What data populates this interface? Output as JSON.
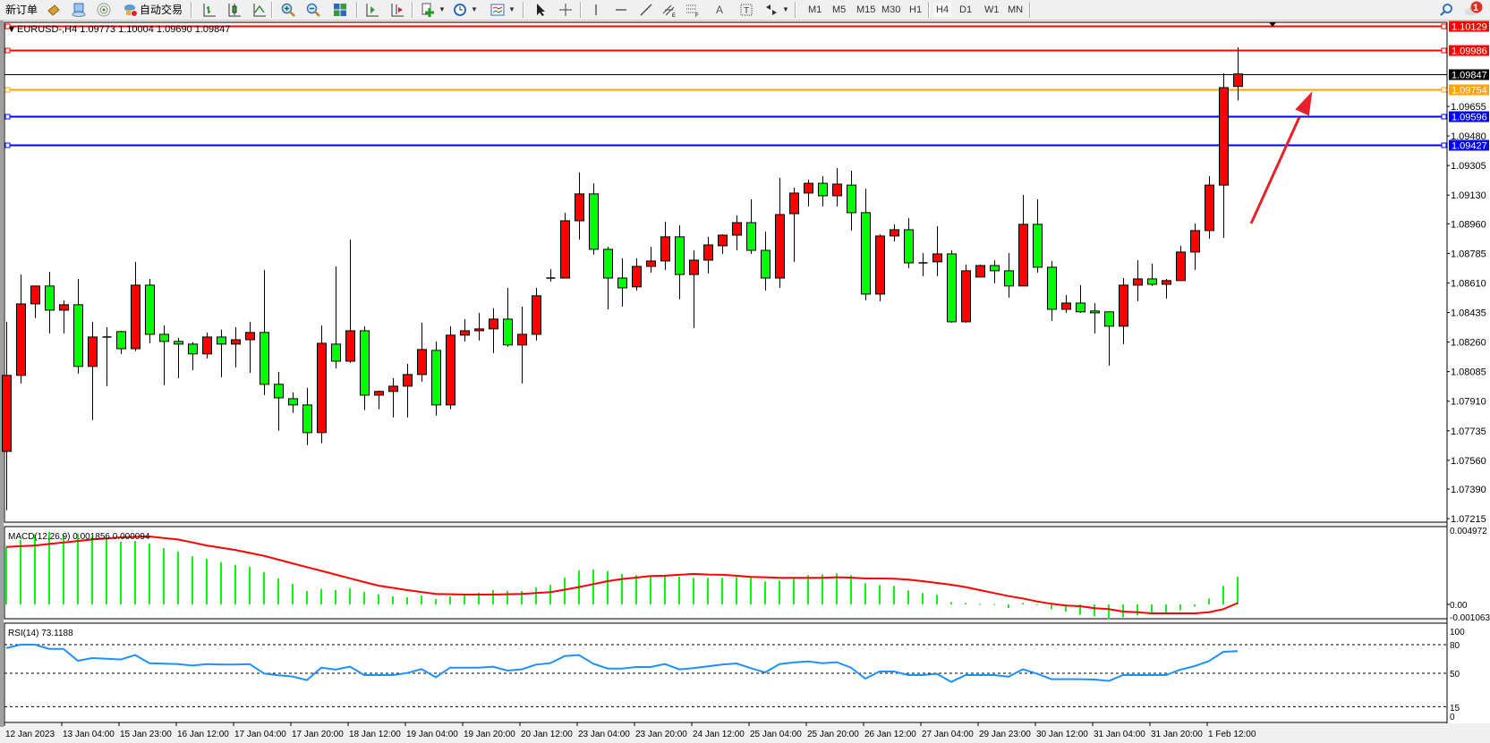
{
  "toolbar": {
    "new_order": "新订单",
    "auto_trading": "自动交易",
    "timeframes": [
      "M1",
      "M5",
      "M15",
      "M30",
      "H1",
      "H4",
      "D1",
      "W1",
      "MN"
    ],
    "active_timeframe": "H4",
    "notification_count": "1"
  },
  "chart": {
    "header": "EURUSD-,H4  1.09773 1.10004 1.09690 1.09847",
    "bull_color": "#ff0000",
    "bear_color": "#00ff00",
    "price_ticks": [
      "1.09655",
      "1.09480",
      "1.09305",
      "1.09130",
      "1.08960",
      "1.08785",
      "1.08610",
      "1.08435",
      "1.08260",
      "1.08085",
      "1.07910",
      "1.07735",
      "1.07560",
      "1.07390",
      "1.07215"
    ],
    "hlines": [
      {
        "price": "1.10129",
        "color": "#ff0000"
      },
      {
        "price": "1.09986",
        "color": "#ff0000"
      },
      {
        "price": "1.09847",
        "color": "#000000"
      },
      {
        "price": "1.09754",
        "color": "#ffa500"
      },
      {
        "price": "1.09596",
        "color": "#0000ff"
      },
      {
        "price": "1.09427",
        "color": "#0000ff"
      }
    ],
    "arrow_color": "#e8202a",
    "time_labels": [
      "12 Jan 2023",
      "13 Jan 04:00",
      "15 Jan 23:00",
      "16 Jan 12:00",
      "17 Jan 04:00",
      "17 Jan 20:00",
      "18 Jan 12:00",
      "19 Jan 04:00",
      "19 Jan 20:00",
      "20 Jan 12:00",
      "23 Jan 04:00",
      "23 Jan 20:00",
      "24 Jan 12:00",
      "25 Jan 04:00",
      "25 Jan 20:00",
      "26 Jan 12:00",
      "27 Jan 04:00",
      "29 Jan 23:00",
      "30 Jan 12:00",
      "31 Jan 04:00",
      "31 Jan 20:00",
      "1 Feb 12:00"
    ]
  },
  "macd": {
    "label": "MACD(12,26,9) 0.001856 0.000094",
    "ticks": [
      "0.004972",
      "0.00",
      "-0.001063"
    ],
    "hist_color": "#00ff00",
    "signal_color": "#ff0000"
  },
  "rsi": {
    "label": "RSI(14) 73.1188",
    "ticks": [
      "100",
      "80",
      "50",
      "15",
      "0"
    ],
    "line_color": "#1e90ff"
  },
  "chart_data": {
    "type": "candlestick",
    "symbol": "EURUSD-",
    "timeframe": "H4",
    "ohlc": [
      [
        1.07613,
        1.0838,
        1.07264,
        1.08063
      ],
      [
        1.08063,
        1.0866,
        1.08015,
        1.08486
      ],
      [
        1.08486,
        1.08592,
        1.08402,
        1.08592
      ],
      [
        1.08592,
        1.08676,
        1.08311,
        1.08449
      ],
      [
        1.08449,
        1.08507,
        1.08311,
        1.08481
      ],
      [
        1.08481,
        1.08634,
        1.08073,
        1.08116
      ],
      [
        1.08116,
        1.0838,
        1.07798,
        1.0829
      ],
      [
        1.0829,
        1.08348,
        1.07999,
        1.0829
      ],
      [
        1.08322,
        1.08327,
        1.0819,
        1.08221
      ],
      [
        1.08221,
        1.08735,
        1.08206,
        1.08597
      ],
      [
        1.08597,
        1.08634,
        1.08253,
        1.08306
      ],
      [
        1.08306,
        1.08359,
        1.08005,
        1.08264
      ],
      [
        1.08264,
        1.08285,
        1.08047,
        1.08248
      ],
      [
        1.08248,
        1.08259,
        1.08094,
        1.0819
      ],
      [
        1.0819,
        1.08317,
        1.08163,
        1.0829
      ],
      [
        1.0829,
        1.08333,
        1.08052,
        1.08248
      ],
      [
        1.08248,
        1.08348,
        1.0811,
        1.08274
      ],
      [
        1.08274,
        1.0838,
        1.08078,
        1.08317
      ],
      [
        1.08317,
        1.08687,
        1.07946,
        1.0801
      ],
      [
        1.0801,
        1.08084,
        1.07735,
        1.0793
      ],
      [
        1.07925,
        1.07962,
        1.07841,
        1.07888
      ],
      [
        1.07888,
        1.07989,
        1.0765,
        1.07724
      ],
      [
        1.07724,
        1.08359,
        1.07661,
        1.08253
      ],
      [
        1.08248,
        1.08708,
        1.08105,
        1.08147
      ],
      [
        1.08147,
        1.08867,
        1.08137,
        1.08327
      ],
      [
        1.08327,
        1.08354,
        1.07857,
        1.07946
      ],
      [
        1.07946,
        1.07973,
        1.07862,
        1.07968
      ],
      [
        1.07968,
        1.08047,
        1.07814,
        1.07999
      ],
      [
        1.07999,
        1.08131,
        1.07814,
        1.08068
      ],
      [
        1.08068,
        1.08375,
        1.08026,
        1.08216
      ],
      [
        1.08211,
        1.08264,
        1.07825,
        1.07888
      ],
      [
        1.07888,
        1.08354,
        1.07862,
        1.08301
      ],
      [
        1.08301,
        1.08396,
        1.08264,
        1.08327
      ],
      [
        1.08327,
        1.08433,
        1.08269,
        1.08338
      ],
      [
        1.08338,
        1.0846,
        1.08195,
        1.08396
      ],
      [
        1.08396,
        1.08581,
        1.08232,
        1.08243
      ],
      [
        1.08243,
        1.0847,
        1.08015,
        1.08306
      ],
      [
        1.08306,
        1.08581,
        1.08269,
        1.08534
      ],
      [
        1.08639,
        1.08692,
        1.08618,
        1.08639
      ],
      [
        1.08639,
        1.09026,
        1.08639,
        1.08978
      ],
      [
        1.08978,
        1.09264,
        1.08867,
        1.09137
      ],
      [
        1.09137,
        1.092,
        1.08777,
        1.08809
      ],
      [
        1.08809,
        1.08824,
        1.08454,
        1.08639
      ],
      [
        1.08639,
        1.08756,
        1.0847,
        1.08581
      ],
      [
        1.08587,
        1.08756,
        1.08565,
        1.08708
      ],
      [
        1.08708,
        1.08824,
        1.08671,
        1.0874
      ],
      [
        1.0874,
        1.08973,
        1.08687,
        1.08883
      ],
      [
        1.08883,
        1.08952,
        1.08513,
        1.0866
      ],
      [
        1.0866,
        1.08803,
        1.08343,
        1.08745
      ],
      [
        1.08745,
        1.08883,
        1.08666,
        1.08835
      ],
      [
        1.0883,
        1.08898,
        1.08782,
        1.08893
      ],
      [
        1.08893,
        1.0901,
        1.08803,
        1.08967
      ],
      [
        1.08967,
        1.09105,
        1.08782,
        1.08803
      ],
      [
        1.08803,
        1.08914,
        1.08565,
        1.08639
      ],
      [
        1.08639,
        1.09232,
        1.08581,
        1.09015
      ],
      [
        1.0902,
        1.09174,
        1.08735,
        1.09142
      ],
      [
        1.09142,
        1.09221,
        1.09063,
        1.092
      ],
      [
        1.092,
        1.09242,
        1.09063,
        1.09126
      ],
      [
        1.09126,
        1.0929,
        1.09063,
        1.09195
      ],
      [
        1.09189,
        1.09274,
        1.0892,
        1.09026
      ],
      [
        1.09026,
        1.09168,
        1.08507,
        1.08544
      ],
      [
        1.08544,
        1.08898,
        1.08502,
        1.08888
      ],
      [
        1.08888,
        1.08957,
        1.08856,
        1.08925
      ],
      [
        1.08925,
        1.08994,
        1.08698,
        1.08729
      ],
      [
        1.08729,
        1.08787,
        1.0865,
        1.08729
      ],
      [
        1.08735,
        1.08946,
        1.0865,
        1.08782
      ],
      [
        1.08782,
        1.08803,
        1.08375,
        1.0838
      ],
      [
        1.0838,
        1.08719,
        1.08375,
        1.08682
      ],
      [
        1.08645,
        1.08719,
        1.08645,
        1.08713
      ],
      [
        1.08713,
        1.08745,
        1.08608,
        1.08682
      ],
      [
        1.08682,
        1.08787,
        1.08523,
        1.08592
      ],
      [
        1.08592,
        1.09131,
        1.08592,
        1.08957
      ],
      [
        1.08957,
        1.09105,
        1.08671,
        1.08703
      ],
      [
        1.08703,
        1.0874,
        1.08385,
        1.08454
      ],
      [
        1.08454,
        1.08539,
        1.08433,
        1.08491
      ],
      [
        1.08491,
        1.08597,
        1.08433,
        1.08439
      ],
      [
        1.08444,
        1.08491,
        1.08311,
        1.08433
      ],
      [
        1.08439,
        1.08439,
        1.08121,
        1.08354
      ],
      [
        1.08354,
        1.08639,
        1.08248,
        1.08597
      ],
      [
        1.08597,
        1.08745,
        1.08502,
        1.08634
      ],
      [
        1.08634,
        1.08724,
        1.08592,
        1.08602
      ],
      [
        1.08602,
        1.08634,
        1.08518,
        1.08624
      ],
      [
        1.08624,
        1.0883,
        1.08624,
        1.08793
      ],
      [
        1.08793,
        1.08962,
        1.08687,
        1.0892
      ],
      [
        1.0892,
        1.09242,
        1.08872,
        1.09189
      ],
      [
        1.09189,
        1.09851,
        1.08877,
        1.09766
      ],
      [
        1.09773,
        1.10004,
        1.0969,
        1.09847
      ]
    ],
    "price_range": [
      1.07215,
      1.10129
    ],
    "macd_hist": [
      0.00385,
      0.00431,
      0.00469,
      0.00485,
      0.00465,
      0.00475,
      0.00455,
      0.00441,
      0.00421,
      0.00425,
      0.00407,
      0.00377,
      0.00353,
      0.00323,
      0.00305,
      0.00283,
      0.00264,
      0.00252,
      0.00216,
      0.00174,
      0.00138,
      0.0009,
      0.00104,
      0.00096,
      0.00108,
      0.00084,
      0.00066,
      0.00054,
      0.00048,
      0.0006,
      0.00036,
      0.00054,
      0.0006,
      0.00078,
      0.00096,
      0.0009,
      0.0009,
      0.00114,
      0.00132,
      0.0018,
      0.00229,
      0.00234,
      0.00224,
      0.00204,
      0.00196,
      0.00188,
      0.00192,
      0.00186,
      0.00178,
      0.00178,
      0.00178,
      0.00184,
      0.0018,
      0.00154,
      0.0016,
      0.00174,
      0.00196,
      0.00202,
      0.00208,
      0.00196,
      0.00142,
      0.0013,
      0.00124,
      0.00094,
      0.00076,
      0.00064,
      0.00016,
      0.0001,
      4e-05,
      3e-05,
      -0.00024,
      0.0001,
      2e-05,
      -0.00032,
      -0.00048,
      -0.00068,
      -0.0008,
      -0.00098,
      -0.00086,
      -0.00074,
      -0.00056,
      -0.00056,
      -0.00038,
      -0.00014,
      0.0004,
      0.00124,
      0.00186
    ],
    "macd_signal": [
      0.00385,
      0.0039,
      0.00395,
      0.00405,
      0.00415,
      0.00425,
      0.00435,
      0.00442,
      0.00449,
      0.00452,
      0.00455,
      0.00445,
      0.00435,
      0.00415,
      0.00395,
      0.0038,
      0.00365,
      0.00345,
      0.00325,
      0.003,
      0.00275,
      0.0025,
      0.00225,
      0.002,
      0.00175,
      0.0015,
      0.00126,
      0.00111,
      0.00096,
      0.00083,
      0.0007,
      0.00068,
      0.00066,
      0.00066,
      0.00066,
      0.00068,
      0.0007,
      0.00076,
      0.00082,
      0.00099,
      0.00116,
      0.00136,
      0.00156,
      0.0017,
      0.0018,
      0.0019,
      0.00192,
      0.00198,
      0.00204,
      0.002,
      0.00198,
      0.00192,
      0.00184,
      0.00182,
      0.00178,
      0.00178,
      0.00178,
      0.00178,
      0.00182,
      0.0018,
      0.00174,
      0.00174,
      0.00172,
      0.00166,
      0.00156,
      0.00144,
      0.00132,
      0.00116,
      0.00096,
      0.00076,
      0.00056,
      0.0004,
      0.0002,
      4e-05,
      -8e-05,
      -0.00012,
      -0.00026,
      -0.00032,
      -0.00048,
      -0.00052,
      -0.0006,
      -0.0006,
      -0.0006,
      -0.0006,
      -0.00052,
      -0.00032,
      9e-05
    ],
    "macd_range": [
      -0.001063,
      0.004972
    ],
    "rsi": [
      76.3,
      80,
      80,
      75.6,
      75.6,
      63.1,
      65.9,
      65.3,
      64.4,
      69.1,
      60.6,
      60,
      59.7,
      58.1,
      59.7,
      59.1,
      59.1,
      59.7,
      49.7,
      47.8,
      46.6,
      42.8,
      55.9,
      53.8,
      56.9,
      48.1,
      48.1,
      48.1,
      50.3,
      54.4,
      45.9,
      55.9,
      55.9,
      55.9,
      56.9,
      52.8,
      54.1,
      59.1,
      60.6,
      68.1,
      69.1,
      60,
      55,
      55,
      56.6,
      56.6,
      59.7,
      54.1,
      55.3,
      57.2,
      59.1,
      60.3,
      55.3,
      50.9,
      59.7,
      61.3,
      62.5,
      60.6,
      61.6,
      55.9,
      44.4,
      51.9,
      51.9,
      48.1,
      48.1,
      49.4,
      40.9,
      48.1,
      48.1,
      48.1,
      46.3,
      54.1,
      49.4,
      43.8,
      43.8,
      43.8,
      43.4,
      41.9,
      48.1,
      48.1,
      48.1,
      48.1,
      53.8,
      57.5,
      62.8,
      72.5,
      73.12
    ],
    "rsi_levels": [
      80,
      50,
      15
    ],
    "rsi_range": [
      0,
      100
    ],
    "time_label_every_bars": 4
  }
}
